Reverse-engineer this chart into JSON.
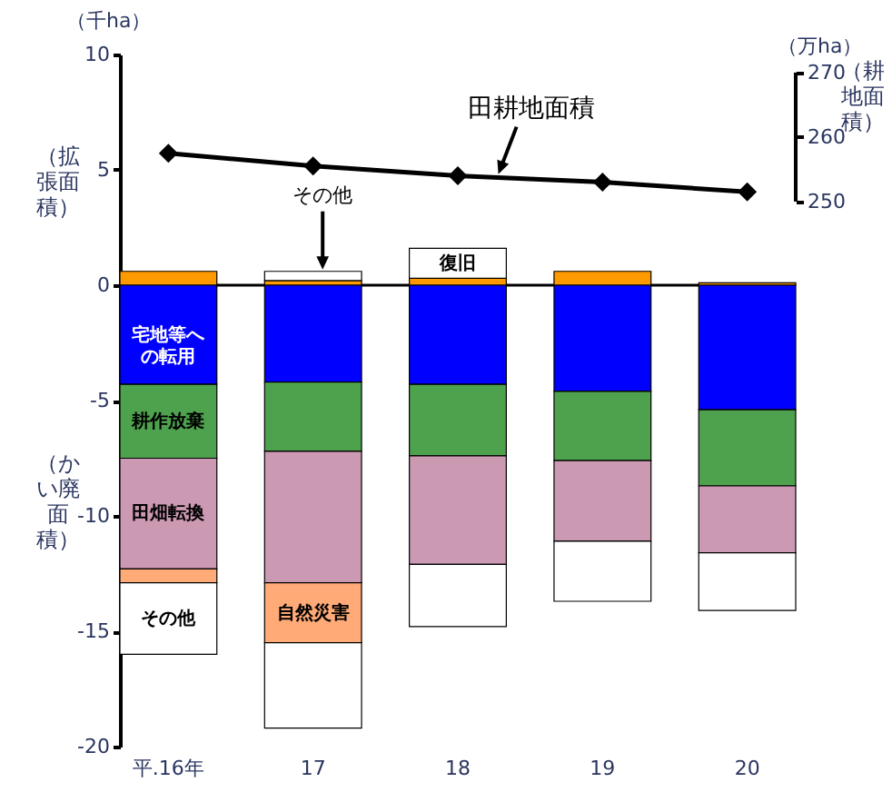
{
  "chart_data": {
    "type": "bar",
    "stacked": true,
    "categories": [
      "平.16年",
      "17",
      "18",
      "19",
      "20"
    ],
    "ylabel": "（拡張面積）",
    "y2label": "（耕地面積）",
    "annotations": [
      "（千ha）",
      "（かい廃面積）",
      "（万ha）"
    ],
    "ylim": [
      -20,
      10
    ],
    "yticks": [
      -20,
      -15,
      -10,
      -5,
      0,
      5,
      10
    ],
    "y2lim": [
      165.5,
      272.8
    ],
    "y2ticks": [
      250,
      260,
      270
    ],
    "marker": "diamond",
    "ref_lines": [
      {
        "axis": "y",
        "value": 0,
        "color": "#000000"
      }
    ],
    "series": [
      {
        "color": "#ff9900",
        "values": [
          0.6,
          0.2,
          0.3,
          0.6,
          0.1
        ]
      },
      {
        "name": "その他",
        "color": "#ffffff",
        "values": [
          null,
          0.4,
          null,
          null,
          null
        ]
      },
      {
        "name": "復旧",
        "color": "#ffffff",
        "values": [
          null,
          null,
          1.3,
          null,
          null
        ]
      },
      {
        "name": "宅地等への転用",
        "color": "#0000ff",
        "values": [
          -4.3,
          -4.2,
          -4.3,
          -4.6,
          -5.4
        ]
      },
      {
        "name": "耕作放棄",
        "color": "#4ea24e",
        "values": [
          -3.2,
          -3.0,
          -3.1,
          -3.0,
          -3.3
        ]
      },
      {
        "name": "田畑転換",
        "color": "#cc99b3",
        "values": [
          -4.8,
          -5.7,
          -4.7,
          -3.5,
          -2.9
        ]
      },
      {
        "name": "自然災害",
        "color": "#ffaa77",
        "values": [
          -0.6,
          -2.6,
          null,
          null,
          null
        ]
      },
      {
        "name": "その他",
        "color": "#ffffff",
        "values": [
          -3.1,
          -3.7,
          -2.7,
          -2.6,
          -2.5
        ]
      },
      {
        "type": "line",
        "axis": "y2",
        "name": "田耕地面積",
        "color": "#000000",
        "values": [
          257.5,
          255.5,
          254,
          253,
          251.5
        ]
      }
    ]
  }
}
